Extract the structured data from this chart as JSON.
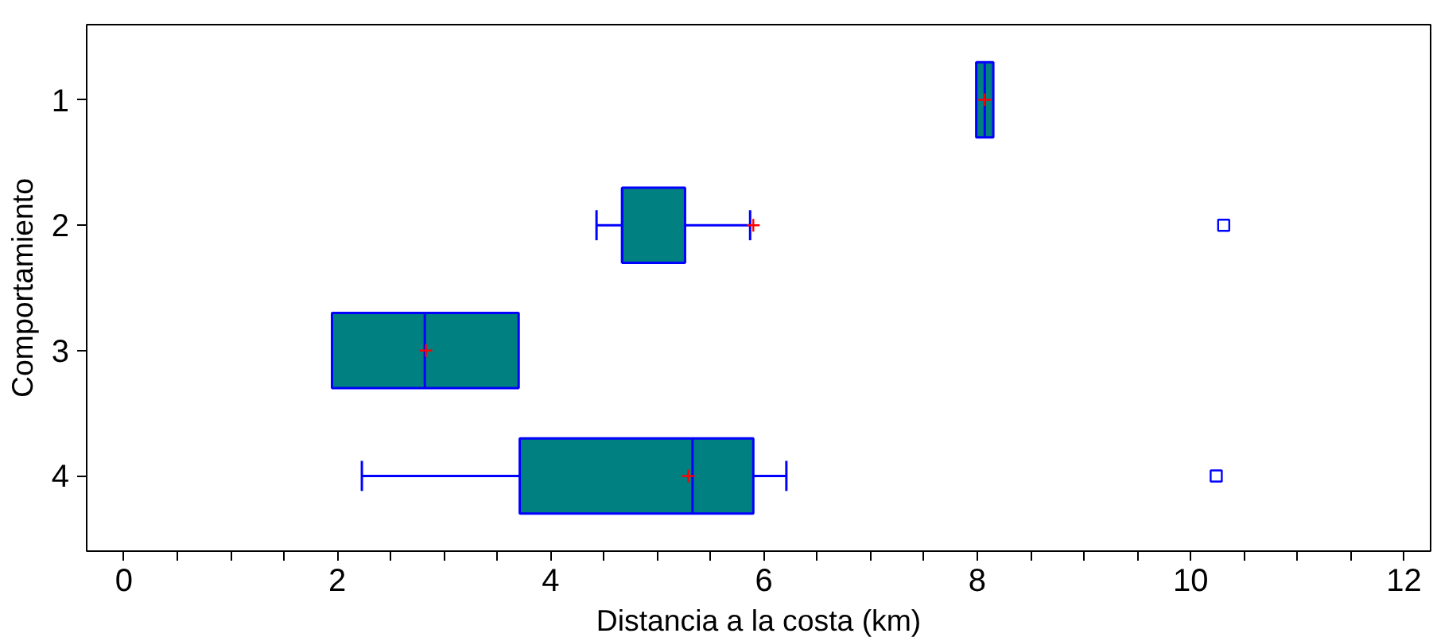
{
  "chart_data": {
    "type": "box",
    "orientation": "horizontal",
    "xlabel": "Distancia a la costa (km)",
    "ylabel": "Comportamiento",
    "categories": [
      "1",
      "2",
      "3",
      "4"
    ],
    "color": "#008080",
    "boxes": [
      {
        "low": 7.99,
        "q1": 7.99,
        "median": 8.07,
        "q3": 8.15,
        "high": 8.15,
        "mean": 8.07
      },
      {
        "low": 4.43,
        "q1": 4.67,
        "median": 4.67,
        "q3": 5.26,
        "high": 5.87,
        "mean": 5.9,
        "outliers": [
          10.31
        ]
      },
      {
        "low": 1.95,
        "q1": 1.95,
        "median": 2.82,
        "q3": 3.7,
        "high": 3.7,
        "mean": 2.83
      },
      {
        "low": 2.23,
        "q1": 3.71,
        "median": 5.33,
        "q3": 5.9,
        "high": 6.21,
        "mean": 5.29,
        "outliers": [
          10.24
        ]
      }
    ],
    "xlim": [
      -0.35,
      12.25
    ],
    "xticks": [
      0,
      {
        "value": 0.5,
        "label": null
      },
      {
        "value": 1,
        "label": null
      },
      {
        "value": 1.5,
        "label": null
      },
      2,
      {
        "value": 2.5,
        "label": null
      },
      {
        "value": 3,
        "label": null
      },
      {
        "value": 3.5,
        "label": null
      },
      4,
      {
        "value": 4.5,
        "label": null
      },
      {
        "value": 5,
        "label": null
      },
      {
        "value": 5.5,
        "label": null
      },
      6,
      {
        "value": 6.5,
        "label": null
      },
      {
        "value": 7,
        "label": null
      },
      {
        "value": 7.5,
        "label": null
      },
      8,
      {
        "value": 8.5,
        "label": null
      },
      {
        "value": 9,
        "label": null
      },
      {
        "value": 9.5,
        "label": null
      },
      10,
      {
        "value": 10.5,
        "label": null
      },
      {
        "value": 11,
        "label": null
      },
      {
        "value": 11.5,
        "label": null
      },
      12
    ],
    "grid": false
  }
}
